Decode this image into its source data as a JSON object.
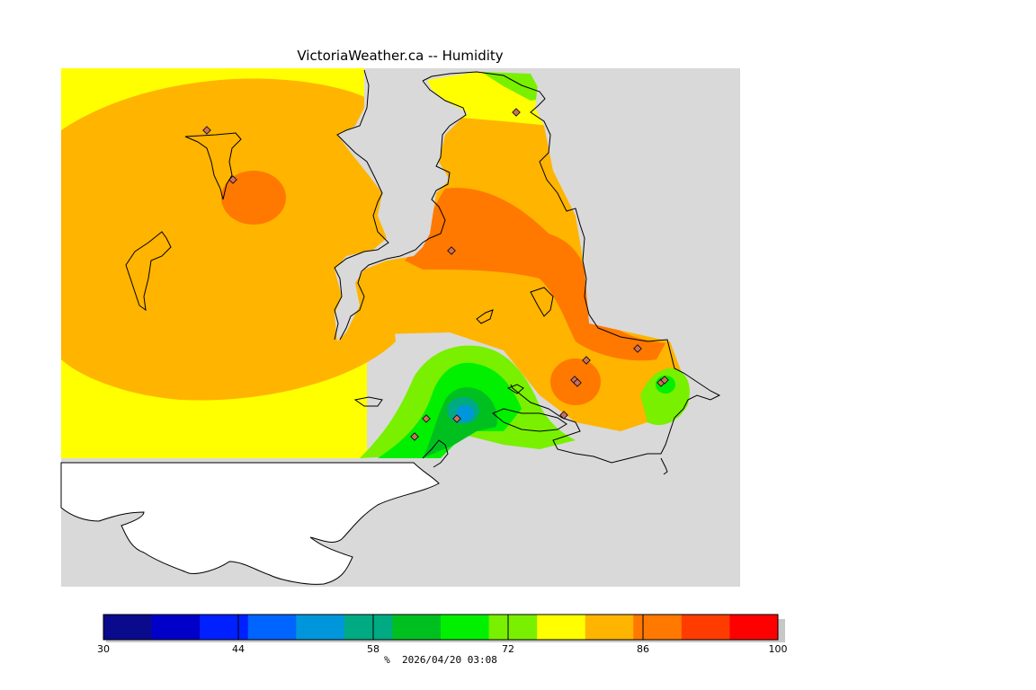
{
  "title": "VictoriaWeather.ca -- Humidity",
  "caption": "%  2026/04/20 03:08",
  "colors": {
    "background": "#ffffff",
    "land_outside_domain": "#d9d9d9",
    "no_data": "#ffffff",
    "coastline": "#000000",
    "station_marker": "#c87060"
  },
  "legend": {
    "unit": "%",
    "min": 30,
    "max": 100,
    "tick_labels": [
      "30",
      "44",
      "58",
      "72",
      "86",
      "100"
    ],
    "bins": [
      {
        "from": 30,
        "to": 35,
        "color": "#0a0a8c"
      },
      {
        "from": 35,
        "to": 40,
        "color": "#0000c8"
      },
      {
        "from": 40,
        "to": 45,
        "color": "#0020ff"
      },
      {
        "from": 45,
        "to": 50,
        "color": "#0064ff"
      },
      {
        "from": 50,
        "to": 55,
        "color": "#0096dc"
      },
      {
        "from": 55,
        "to": 60,
        "color": "#00aa82"
      },
      {
        "from": 60,
        "to": 65,
        "color": "#00c020"
      },
      {
        "from": 65,
        "to": 70,
        "color": "#00f000"
      },
      {
        "from": 70,
        "to": 75,
        "color": "#78f000"
      },
      {
        "from": 75,
        "to": 80,
        "color": "#ffff00"
      },
      {
        "from": 80,
        "to": 85,
        "color": "#ffb400"
      },
      {
        "from": 85,
        "to": 90,
        "color": "#ff7800"
      },
      {
        "from": 90,
        "to": 95,
        "color": "#ff3c00"
      },
      {
        "from": 95,
        "to": 100,
        "color": "#ff0000"
      }
    ]
  },
  "zone_colors": {
    "z75": "#ffff00",
    "z80": "#ffb400",
    "z85": "#ff7800",
    "z90": "#ff3c00",
    "z70": "#78f000",
    "z65": "#00f000",
    "z60": "#00c020",
    "z55": "#00aa82",
    "z50": "#0096dc"
  }
}
